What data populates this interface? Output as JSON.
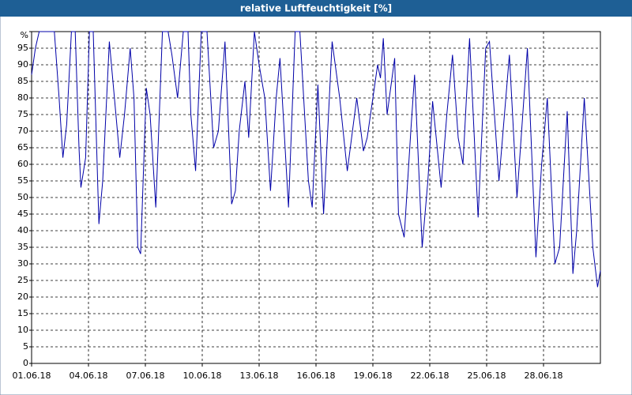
{
  "chart_data": {
    "type": "line",
    "title": "relative Luftfeuchtigkeit [%]",
    "x": [
      0,
      0.2,
      0.4,
      1.2,
      1.45,
      1.65,
      1.85,
      2.1,
      2.3,
      2.5,
      2.6,
      2.85,
      3.05,
      3.25,
      3.55,
      3.75,
      4.1,
      4.4,
      4.65,
      4.9,
      5.2,
      5.4,
      5.6,
      5.75,
      6.05,
      6.25,
      6.55,
      6.9,
      7.2,
      7.4,
      7.7,
      8.0,
      8.25,
      8.4,
      8.65,
      8.95,
      9.25,
      9.6,
      9.85,
      10.2,
      10.55,
      10.75,
      10.95,
      11.25,
      11.45,
      11.75,
      12.0,
      12.3,
      12.6,
      12.9,
      13.1,
      13.55,
      13.9,
      14.15,
      14.6,
      14.8,
      15.1,
      15.4,
      15.85,
      16.25,
      16.65,
      17.15,
      17.5,
      17.7,
      18.0,
      18.25,
      18.4,
      18.55,
      18.75,
      19.15,
      19.35,
      19.65,
      20.0,
      20.2,
      20.6,
      20.9,
      21.15,
      21.6,
      21.9,
      22.2,
      22.5,
      22.75,
      23.1,
      23.55,
      23.95,
      24.15,
      24.65,
      25.2,
      25.6,
      26.15,
      26.6,
      26.9,
      27.2,
      27.6,
      27.85,
      28.25,
      28.55,
      28.75,
      29.15,
      29.6,
      29.85,
      30.0
    ],
    "values": [
      87,
      95,
      100,
      100,
      80,
      62,
      72,
      100,
      100,
      65,
      53,
      62,
      100,
      100,
      42,
      55,
      97,
      78,
      62,
      75,
      95,
      80,
      35,
      33,
      83,
      75,
      47,
      100,
      100,
      93,
      80,
      100,
      100,
      75,
      58,
      100,
      100,
      65,
      70,
      97,
      48,
      52,
      70,
      85,
      68,
      100,
      90,
      80,
      52,
      80,
      92,
      47,
      100,
      100,
      55,
      47,
      84,
      45,
      97,
      80,
      58,
      80,
      64,
      68,
      80,
      90,
      86,
      98,
      75,
      92,
      45,
      38,
      70,
      87,
      35,
      55,
      79,
      53,
      75,
      93,
      68,
      60,
      98,
      44,
      95,
      97,
      55,
      93,
      50,
      95,
      32,
      60,
      80,
      30,
      35,
      76,
      27,
      40,
      80,
      35,
      23,
      28
    ],
    "color": "#0000a8",
    "xlim": [
      0,
      30
    ],
    "xticks": [
      {
        "value": 0,
        "label": "01.06.18"
      },
      {
        "value": 3,
        "label": "04.06.18"
      },
      {
        "value": 6,
        "label": "07.06.18"
      },
      {
        "value": 9,
        "label": "10.06.18"
      },
      {
        "value": 12,
        "label": "13.06.18"
      },
      {
        "value": 15,
        "label": "16.06.18"
      },
      {
        "value": 18,
        "label": "19.06.18"
      },
      {
        "value": 21,
        "label": "22.06.18"
      },
      {
        "value": 24,
        "label": "25.06.18"
      },
      {
        "value": 27,
        "label": "28.06.18"
      }
    ],
    "ylim": [
      0,
      100
    ],
    "yticks": [
      0,
      5,
      10,
      15,
      20,
      25,
      30,
      35,
      40,
      45,
      50,
      55,
      60,
      65,
      70,
      75,
      80,
      85,
      90,
      95,
      {
        "value": 100,
        "label": "%"
      }
    ],
    "grid": true
  }
}
